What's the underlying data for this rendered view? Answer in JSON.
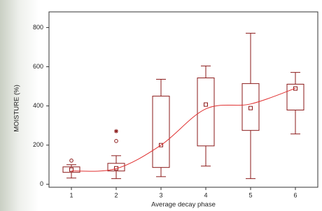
{
  "chart_data": {
    "type": "box",
    "x_label": "Average decay phase",
    "y_label": "MOISTURE (%)",
    "categories": [
      "1",
      "2",
      "3",
      "4",
      "5",
      "6"
    ],
    "color": "#8b1a1a",
    "trend_color": "#e03030",
    "boxes": [
      {
        "min": 32,
        "q1": 61,
        "median": 75,
        "q3": 89,
        "max": 100,
        "outliers": [
          {
            "value": 121,
            "marker": "circle"
          }
        ]
      },
      {
        "min": 29,
        "q1": 68,
        "median": 82,
        "q3": 107,
        "max": 146,
        "outliers": [
          {
            "value": 221,
            "marker": "circle"
          },
          {
            "value": 271,
            "marker": "star"
          }
        ]
      },
      {
        "min": 39,
        "q1": 86,
        "median": 200,
        "q3": 450,
        "max": 536,
        "outliers": []
      },
      {
        "min": 93,
        "q1": 196,
        "median": 407,
        "q3": 543,
        "max": 604,
        "outliers": []
      },
      {
        "min": 29,
        "q1": 275,
        "median": 389,
        "q3": 514,
        "max": 771,
        "outliers": []
      },
      {
        "min": 257,
        "q1": 379,
        "median": 489,
        "q3": 511,
        "max": 571,
        "outliers": []
      }
    ],
    "trend": [
      68,
      80,
      200,
      385,
      410,
      490
    ],
    "ylim": [
      -15,
      880
    ],
    "yticks": [
      0,
      200,
      400,
      600,
      800
    ],
    "grid": false
  }
}
